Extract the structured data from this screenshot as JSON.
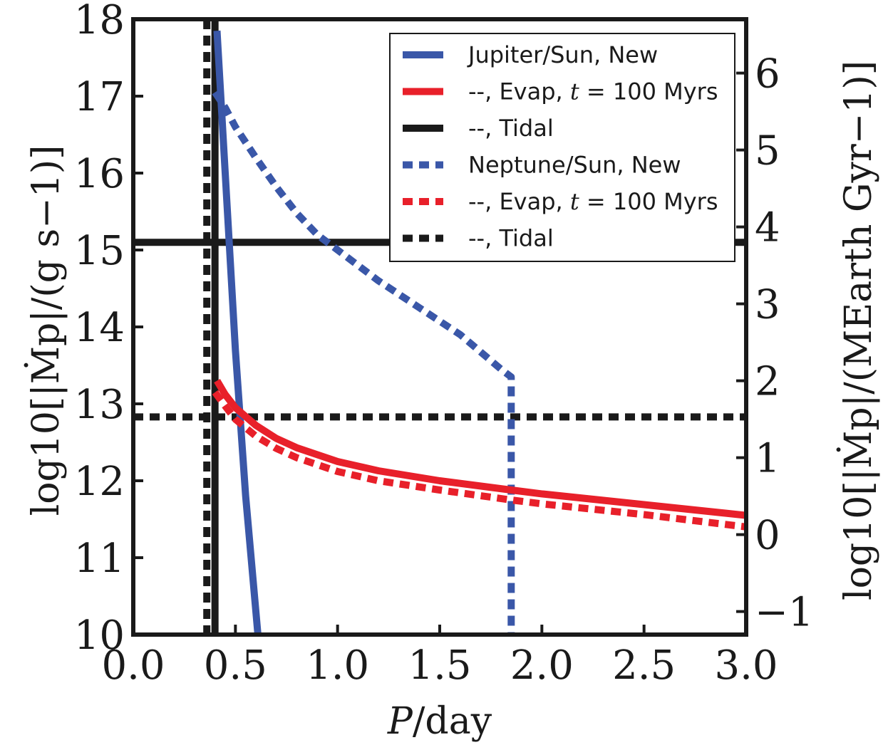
{
  "chart_data": {
    "type": "line",
    "title": "",
    "xlabel": {
      "prefix": "P",
      "suffix": "/day"
    },
    "ylabel_left": {
      "text": "log10[|Ṁp|/(g s−1)]"
    },
    "ylabel_right": {
      "text": "log10[|Ṁp|/(MEarth Gyr−1)]"
    },
    "xlim": [
      0.0,
      3.0
    ],
    "ylim": [
      10,
      18
    ],
    "ylim_right": [
      -1.3,
      6.7
    ],
    "x_ticks": [
      "0.0",
      "0.5",
      "1.0",
      "1.5",
      "2.0",
      "2.5",
      "3.0"
    ],
    "y_ticks_left": [
      "10",
      "11",
      "12",
      "13",
      "14",
      "15",
      "16",
      "17",
      "18"
    ],
    "y_ticks_right": [
      "−1",
      "0",
      "1",
      "2",
      "3",
      "4",
      "5",
      "6"
    ],
    "legend_position": "top-right",
    "colors": {
      "blue": "#3a57a8",
      "red": "#e8202a",
      "black": "#1a1a1a"
    },
    "series": [
      {
        "name": "Jupiter/Sun, New",
        "color": "#3a57a8",
        "dash": "solid",
        "x": [
          0.41,
          0.45,
          0.5,
          0.55,
          0.61
        ],
        "y": [
          17.85,
          16.0,
          13.7,
          11.8,
          10.0
        ]
      },
      {
        "name": "--, Evap, t = 100 Myrs",
        "color": "#e8202a",
        "dash": "solid",
        "x": [
          0.41,
          0.45,
          0.5,
          0.6,
          0.7,
          0.8,
          1.0,
          1.2,
          1.5,
          1.85,
          2.0,
          2.5,
          3.0
        ],
        "y": [
          13.3,
          13.12,
          12.95,
          12.72,
          12.55,
          12.43,
          12.25,
          12.13,
          12.0,
          11.88,
          11.83,
          11.69,
          11.55
        ]
      },
      {
        "name": "--, Tidal",
        "color": "#1a1a1a",
        "dash": "solid",
        "x": [
          0.0,
          3.0
        ],
        "y": [
          15.1,
          15.1
        ]
      },
      {
        "name": "Neptune/Sun, New",
        "color": "#3a57a8",
        "dash": "dotted",
        "x": [
          0.4,
          0.45,
          0.5,
          0.6,
          0.7,
          0.8,
          0.9,
          1.0,
          1.2,
          1.4,
          1.6,
          1.8,
          1.85,
          1.85
        ],
        "y": [
          17.05,
          16.85,
          16.6,
          16.2,
          15.82,
          15.48,
          15.2,
          15.0,
          14.6,
          14.25,
          13.9,
          13.45,
          13.35,
          10.0
        ]
      },
      {
        "name": "--, Evap, t = 100 Myrs",
        "color": "#e8202a",
        "dash": "dotted",
        "x": [
          0.4,
          0.45,
          0.5,
          0.6,
          0.7,
          0.8,
          1.0,
          1.2,
          1.5,
          1.85,
          2.0,
          2.5,
          3.0
        ],
        "y": [
          13.15,
          12.97,
          12.8,
          12.58,
          12.42,
          12.3,
          12.12,
          12.0,
          11.88,
          11.75,
          11.7,
          11.56,
          11.4
        ]
      },
      {
        "name": "--, Tidal",
        "color": "#1a1a1a",
        "dash": "dotted",
        "x": [
          0.0,
          3.0
        ],
        "y": [
          12.83,
          12.83
        ]
      }
    ],
    "vertical_lines": [
      {
        "x": 0.4,
        "color": "#1a1a1a",
        "dash": "solid"
      },
      {
        "x": 0.36,
        "color": "#1a1a1a",
        "dash": "dotted"
      }
    ],
    "legend": [
      {
        "label": "Jupiter/Sun, New",
        "color": "#3a57a8",
        "dash": "solid"
      },
      {
        "label_prefix": "--, Evap, ",
        "label_math": "t",
        "label_suffix": " = 100 Myrs",
        "color": "#e8202a",
        "dash": "solid"
      },
      {
        "label": "--, Tidal",
        "color": "#1a1a1a",
        "dash": "solid"
      },
      {
        "label": "Neptune/Sun, New",
        "color": "#3a57a8",
        "dash": "dotted"
      },
      {
        "label_prefix": "--, Evap, ",
        "label_math": "t",
        "label_suffix": " = 100 Myrs",
        "color": "#e8202a",
        "dash": "dotted"
      },
      {
        "label": "--, Tidal",
        "color": "#1a1a1a",
        "dash": "dotted"
      }
    ]
  }
}
